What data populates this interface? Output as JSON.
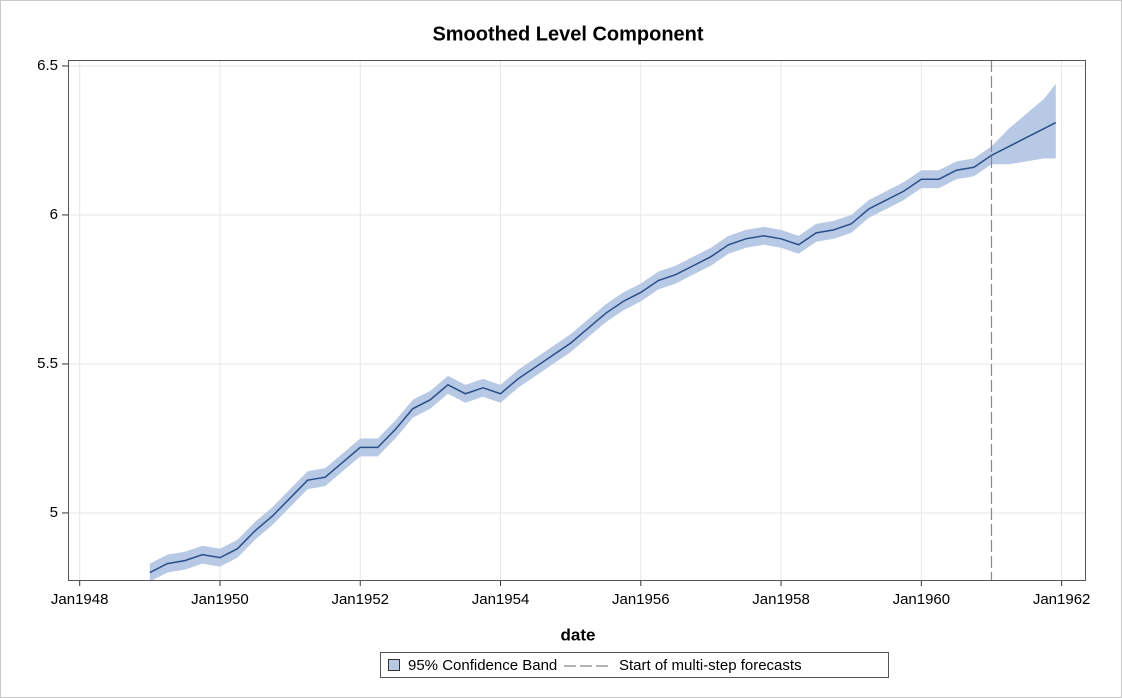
{
  "chart_data": {
    "type": "line",
    "title": "Smoothed Level Component",
    "x_label": "date",
    "x": [
      "1949-01",
      "1949-04",
      "1949-07",
      "1949-10",
      "1950-01",
      "1950-04",
      "1950-07",
      "1950-10",
      "1951-01",
      "1951-04",
      "1951-07",
      "1951-10",
      "1952-01",
      "1952-04",
      "1952-07",
      "1952-10",
      "1953-01",
      "1953-04",
      "1953-07",
      "1953-10",
      "1954-01",
      "1954-04",
      "1954-07",
      "1954-10",
      "1955-01",
      "1955-04",
      "1955-07",
      "1955-10",
      "1956-01",
      "1956-04",
      "1956-07",
      "1956-10",
      "1957-01",
      "1957-04",
      "1957-07",
      "1957-10",
      "1958-01",
      "1958-04",
      "1958-07",
      "1958-10",
      "1959-01",
      "1959-04",
      "1959-07",
      "1959-10",
      "1960-01",
      "1960-04",
      "1960-07",
      "1960-10",
      "1961-01",
      "1961-04",
      "1961-07",
      "1961-10",
      "1961-12"
    ],
    "values": [
      4.8,
      4.83,
      4.84,
      4.86,
      4.85,
      4.88,
      4.94,
      4.99,
      5.05,
      5.11,
      5.12,
      5.17,
      5.22,
      5.22,
      5.28,
      5.35,
      5.38,
      5.43,
      5.4,
      5.42,
      5.4,
      5.45,
      5.49,
      5.53,
      5.57,
      5.62,
      5.67,
      5.71,
      5.74,
      5.78,
      5.8,
      5.83,
      5.86,
      5.9,
      5.92,
      5.93,
      5.92,
      5.9,
      5.94,
      5.95,
      5.97,
      6.02,
      6.05,
      6.08,
      6.12,
      6.12,
      6.15,
      6.16,
      6.2,
      6.23,
      6.26,
      6.29,
      6.31
    ],
    "color": "#2a4f8a",
    "band": {
      "name": "95% Confidence Band",
      "color": "#b7c9e5",
      "lower": [
        4.77,
        4.8,
        4.81,
        4.83,
        4.82,
        4.85,
        4.91,
        4.96,
        5.02,
        5.08,
        5.09,
        5.14,
        5.19,
        5.19,
        5.25,
        5.32,
        5.35,
        5.4,
        5.37,
        5.39,
        5.37,
        5.42,
        5.46,
        5.5,
        5.54,
        5.59,
        5.64,
        5.68,
        5.71,
        5.75,
        5.77,
        5.8,
        5.83,
        5.87,
        5.89,
        5.9,
        5.89,
        5.87,
        5.91,
        5.92,
        5.94,
        5.99,
        6.02,
        6.05,
        6.09,
        6.09,
        6.12,
        6.13,
        6.17,
        6.17,
        6.18,
        6.19,
        6.19
      ],
      "upper": [
        4.83,
        4.86,
        4.87,
        4.89,
        4.88,
        4.91,
        4.97,
        5.02,
        5.08,
        5.14,
        5.15,
        5.2,
        5.25,
        5.25,
        5.31,
        5.38,
        5.41,
        5.46,
        5.43,
        5.45,
        5.43,
        5.48,
        5.52,
        5.56,
        5.6,
        5.65,
        5.7,
        5.74,
        5.77,
        5.81,
        5.83,
        5.86,
        5.89,
        5.93,
        5.95,
        5.96,
        5.95,
        5.93,
        5.97,
        5.98,
        6.0,
        6.05,
        6.08,
        6.11,
        6.15,
        6.15,
        6.18,
        6.19,
        6.23,
        6.29,
        6.34,
        6.39,
        6.44
      ]
    },
    "refline": {
      "x": "1961-01",
      "label": "Start of multi-step forecasts",
      "color": "#888888"
    },
    "xlim": [
      "1947-11",
      "1962-05"
    ],
    "xticks": [
      {
        "value": "1948-01",
        "label": "Jan1948"
      },
      {
        "value": "1950-01",
        "label": "Jan1950"
      },
      {
        "value": "1952-01",
        "label": "Jan1952"
      },
      {
        "value": "1954-01",
        "label": "Jan1954"
      },
      {
        "value": "1956-01",
        "label": "Jan1956"
      },
      {
        "value": "1958-01",
        "label": "Jan1958"
      },
      {
        "value": "1960-01",
        "label": "Jan1960"
      },
      {
        "value": "1962-01",
        "label": "Jan1962"
      }
    ],
    "ylim": [
      4.775,
      6.52
    ],
    "yticks": [
      5,
      5.5,
      6,
      6.5
    ],
    "grid": true
  }
}
